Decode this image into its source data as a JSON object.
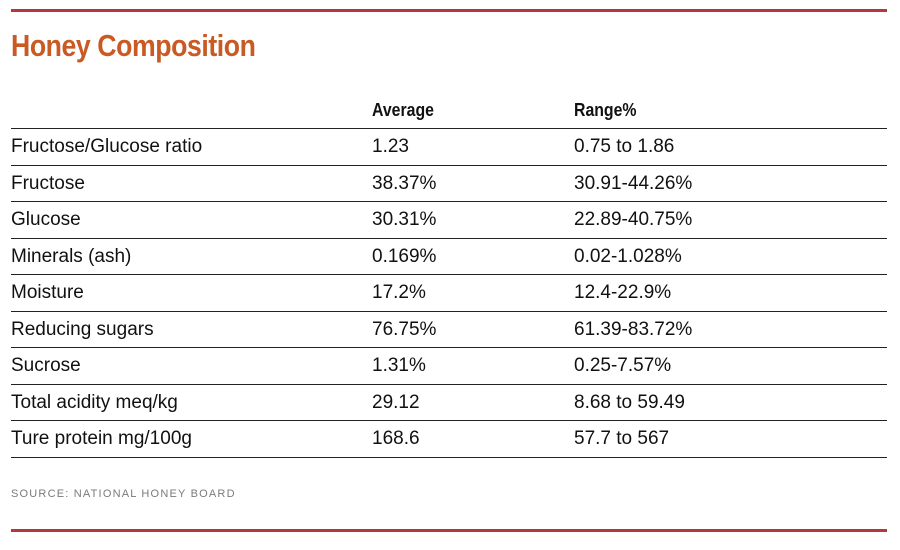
{
  "colors": {
    "accent_rule": "#b2383e",
    "title": "#c95a23",
    "source": "#7a7a7a"
  },
  "title": "Honey Composition",
  "table": {
    "headers": [
      "",
      "Average",
      "Range%"
    ],
    "rows": [
      [
        "Fructose/Glucose ratio",
        "1.23",
        "0.75 to 1.86"
      ],
      [
        "Fructose",
        "38.37%",
        "30.91-44.26%"
      ],
      [
        "Glucose",
        "30.31%",
        "22.89-40.75%"
      ],
      [
        "Minerals (ash)",
        "0.169%",
        "0.02-1.028%"
      ],
      [
        "Moisture",
        "17.2%",
        "12.4-22.9%"
      ],
      [
        "Reducing sugars",
        "76.75%",
        "61.39-83.72%"
      ],
      [
        "Sucrose",
        "1.31%",
        "0.25-7.57%"
      ],
      [
        "Total acidity meq/kg",
        "29.12",
        "8.68 to 59.49"
      ],
      [
        "Ture protein mg/100g",
        "168.6",
        "57.7 to 567"
      ]
    ]
  },
  "source": "SOURCE: NATIONAL HONEY BOARD"
}
